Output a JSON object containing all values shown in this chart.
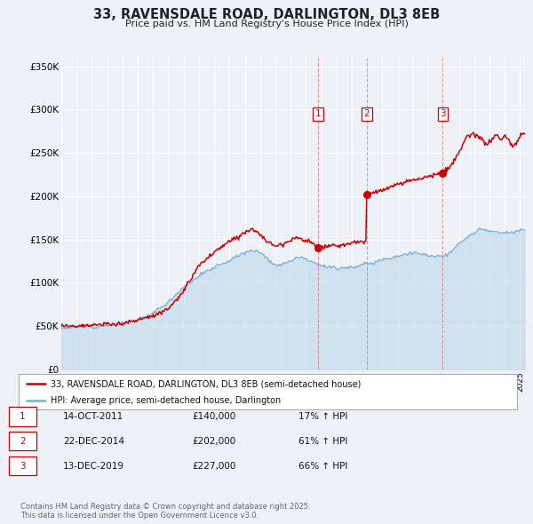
{
  "title": "33, RAVENSDALE ROAD, DARLINGTON, DL3 8EB",
  "subtitle": "Price paid vs. HM Land Registry's House Price Index (HPI)",
  "ylim": [
    0,
    360000
  ],
  "xlim_start": 1995.0,
  "xlim_end": 2025.5,
  "yticks": [
    0,
    50000,
    100000,
    150000,
    200000,
    250000,
    300000,
    350000
  ],
  "ytick_labels": [
    "£0",
    "£50K",
    "£100K",
    "£150K",
    "£200K",
    "£250K",
    "£300K",
    "£350K"
  ],
  "background_color": "#eef2f8",
  "grid_color": "#ffffff",
  "title_color": "#222222",
  "red_line_color": "#cc0000",
  "blue_line_color": "#7ab0d4",
  "blue_fill_color": "#b8d4e8",
  "transactions": [
    {
      "date": 2011.79,
      "price": 140000,
      "label": "1"
    },
    {
      "date": 2014.97,
      "price": 202000,
      "label": "2"
    },
    {
      "date": 2019.95,
      "price": 227000,
      "label": "3"
    }
  ],
  "legend_entries": [
    "33, RAVENSDALE ROAD, DARLINGTON, DL3 8EB (semi-detached house)",
    "HPI: Average price, semi-detached house, Darlington"
  ],
  "table_rows": [
    {
      "num": "1",
      "date": "14-OCT-2011",
      "price": "£140,000",
      "pct": "17% ↑ HPI"
    },
    {
      "num": "2",
      "date": "22-DEC-2014",
      "price": "£202,000",
      "pct": "61% ↑ HPI"
    },
    {
      "num": "3",
      "date": "13-DEC-2019",
      "price": "£227,000",
      "pct": "66% ↑ HPI"
    }
  ],
  "footnote": "Contains HM Land Registry data © Crown copyright and database right 2025.\nThis data is licensed under the Open Government Licence v3.0.",
  "hpi_anchors": [
    [
      1995.0,
      48000
    ],
    [
      1996.0,
      49000
    ],
    [
      1997.0,
      49500
    ],
    [
      1998.0,
      51000
    ],
    [
      1999.0,
      53000
    ],
    [
      2000.0,
      57000
    ],
    [
      2001.0,
      65000
    ],
    [
      2002.0,
      78000
    ],
    [
      2003.0,
      95000
    ],
    [
      2004.0,
      108000
    ],
    [
      2005.0,
      118000
    ],
    [
      2006.0,
      126000
    ],
    [
      2007.0,
      135000
    ],
    [
      2007.8,
      138000
    ],
    [
      2008.5,
      128000
    ],
    [
      2009.0,
      120000
    ],
    [
      2009.5,
      122000
    ],
    [
      2010.0,
      126000
    ],
    [
      2010.5,
      130000
    ],
    [
      2011.0,
      128000
    ],
    [
      2011.5,
      124000
    ],
    [
      2012.0,
      120000
    ],
    [
      2012.5,
      118000
    ],
    [
      2013.0,
      117000
    ],
    [
      2013.5,
      118000
    ],
    [
      2014.0,
      118000
    ],
    [
      2014.5,
      120000
    ],
    [
      2015.0,
      122000
    ],
    [
      2015.5,
      124000
    ],
    [
      2016.0,
      127000
    ],
    [
      2016.5,
      129000
    ],
    [
      2017.0,
      131000
    ],
    [
      2017.5,
      133000
    ],
    [
      2018.0,
      135000
    ],
    [
      2018.5,
      133000
    ],
    [
      2019.0,
      132000
    ],
    [
      2019.5,
      131000
    ],
    [
      2020.0,
      131000
    ],
    [
      2020.5,
      135000
    ],
    [
      2021.0,
      145000
    ],
    [
      2021.5,
      152000
    ],
    [
      2022.0,
      158000
    ],
    [
      2022.5,
      162000
    ],
    [
      2023.0,
      160000
    ],
    [
      2023.5,
      158000
    ],
    [
      2024.0,
      157000
    ],
    [
      2024.5,
      158000
    ],
    [
      2025.3,
      162000
    ]
  ],
  "prop_anchors": [
    [
      1995.0,
      50500
    ],
    [
      1996.0,
      50500
    ],
    [
      1997.0,
      51000
    ],
    [
      1998.0,
      52000
    ],
    [
      1999.0,
      53000
    ],
    [
      2000.0,
      57000
    ],
    [
      2001.0,
      62000
    ],
    [
      2002.0,
      70000
    ],
    [
      2003.0,
      90000
    ],
    [
      2004.0,
      120000
    ],
    [
      2005.0,
      135000
    ],
    [
      2006.0,
      148000
    ],
    [
      2007.0,
      158000
    ],
    [
      2007.5,
      163000
    ],
    [
      2008.0,
      155000
    ],
    [
      2008.5,
      147000
    ],
    [
      2009.0,
      143000
    ],
    [
      2009.5,
      145000
    ],
    [
      2010.0,
      150000
    ],
    [
      2010.5,
      152000
    ],
    [
      2011.0,
      149000
    ],
    [
      2011.4,
      146000
    ],
    [
      2011.79,
      140000
    ],
    [
      2012.0,
      141000
    ],
    [
      2012.5,
      143000
    ],
    [
      2013.0,
      142000
    ],
    [
      2013.5,
      144000
    ],
    [
      2014.0,
      146000
    ],
    [
      2014.5,
      147000
    ],
    [
      2014.969,
      147500
    ],
    [
      2014.97,
      202000
    ],
    [
      2015.0,
      203000
    ],
    [
      2015.5,
      205000
    ],
    [
      2016.0,
      207000
    ],
    [
      2016.5,
      210000
    ],
    [
      2017.0,
      213000
    ],
    [
      2017.5,
      216000
    ],
    [
      2018.0,
      219000
    ],
    [
      2018.5,
      221000
    ],
    [
      2019.0,
      223000
    ],
    [
      2019.5,
      225000
    ],
    [
      2019.949,
      225500
    ],
    [
      2019.95,
      227000
    ],
    [
      2020.0,
      228000
    ],
    [
      2020.5,
      235000
    ],
    [
      2021.0,
      250000
    ],
    [
      2021.3,
      260000
    ],
    [
      2021.5,
      268000
    ],
    [
      2022.0,
      272000
    ],
    [
      2022.3,
      268000
    ],
    [
      2022.5,
      265000
    ],
    [
      2022.8,
      260000
    ],
    [
      2023.0,
      262000
    ],
    [
      2023.3,
      268000
    ],
    [
      2023.5,
      270000
    ],
    [
      2023.8,
      265000
    ],
    [
      2024.0,
      270000
    ],
    [
      2024.3,
      264000
    ],
    [
      2024.5,
      258000
    ],
    [
      2024.8,
      262000
    ],
    [
      2025.0,
      268000
    ],
    [
      2025.3,
      275000
    ]
  ]
}
